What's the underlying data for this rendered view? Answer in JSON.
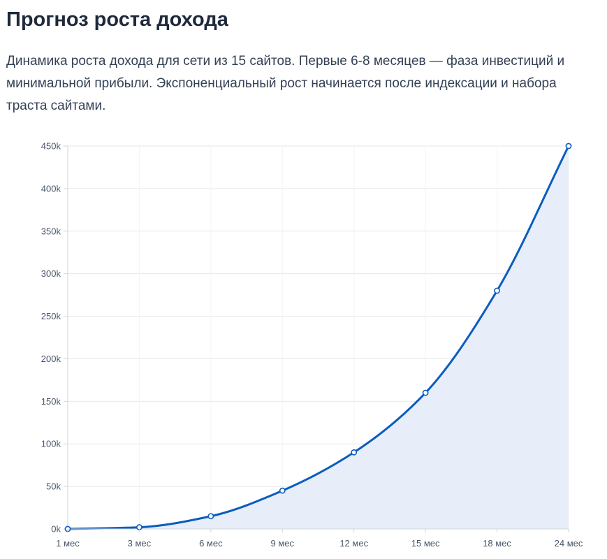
{
  "header": {
    "title": "Прогноз роста дохода",
    "description": "Динамика роста дохода для сети из 15 сайтов. Первые 6-8 месяцев — фаза инвестиций и минимальной прибыли. Экспоненциальный рост начинается после индексации и набора траста сайтами."
  },
  "chart_data": {
    "type": "area",
    "categories": [
      "1 мес",
      "3 мес",
      "6 мес",
      "9 мес",
      "12 мес",
      "15 мес",
      "18 мес",
      "24 мес"
    ],
    "values": [
      0,
      2000,
      15000,
      45000,
      90000,
      160000,
      280000,
      450000
    ],
    "ylim": [
      0,
      450000
    ],
    "y_ticks": [
      0,
      50000,
      100000,
      150000,
      200000,
      250000,
      300000,
      350000,
      400000,
      450000
    ],
    "y_tick_labels": [
      "0k",
      "50k",
      "100k",
      "150k",
      "200k",
      "250k",
      "300k",
      "350k",
      "400k",
      "450k"
    ],
    "grid": true,
    "colors": {
      "line": "#0b5cbf",
      "fill": "#e8eef9",
      "grid": "#e5e7eb",
      "axis": "#d1d5db"
    }
  }
}
